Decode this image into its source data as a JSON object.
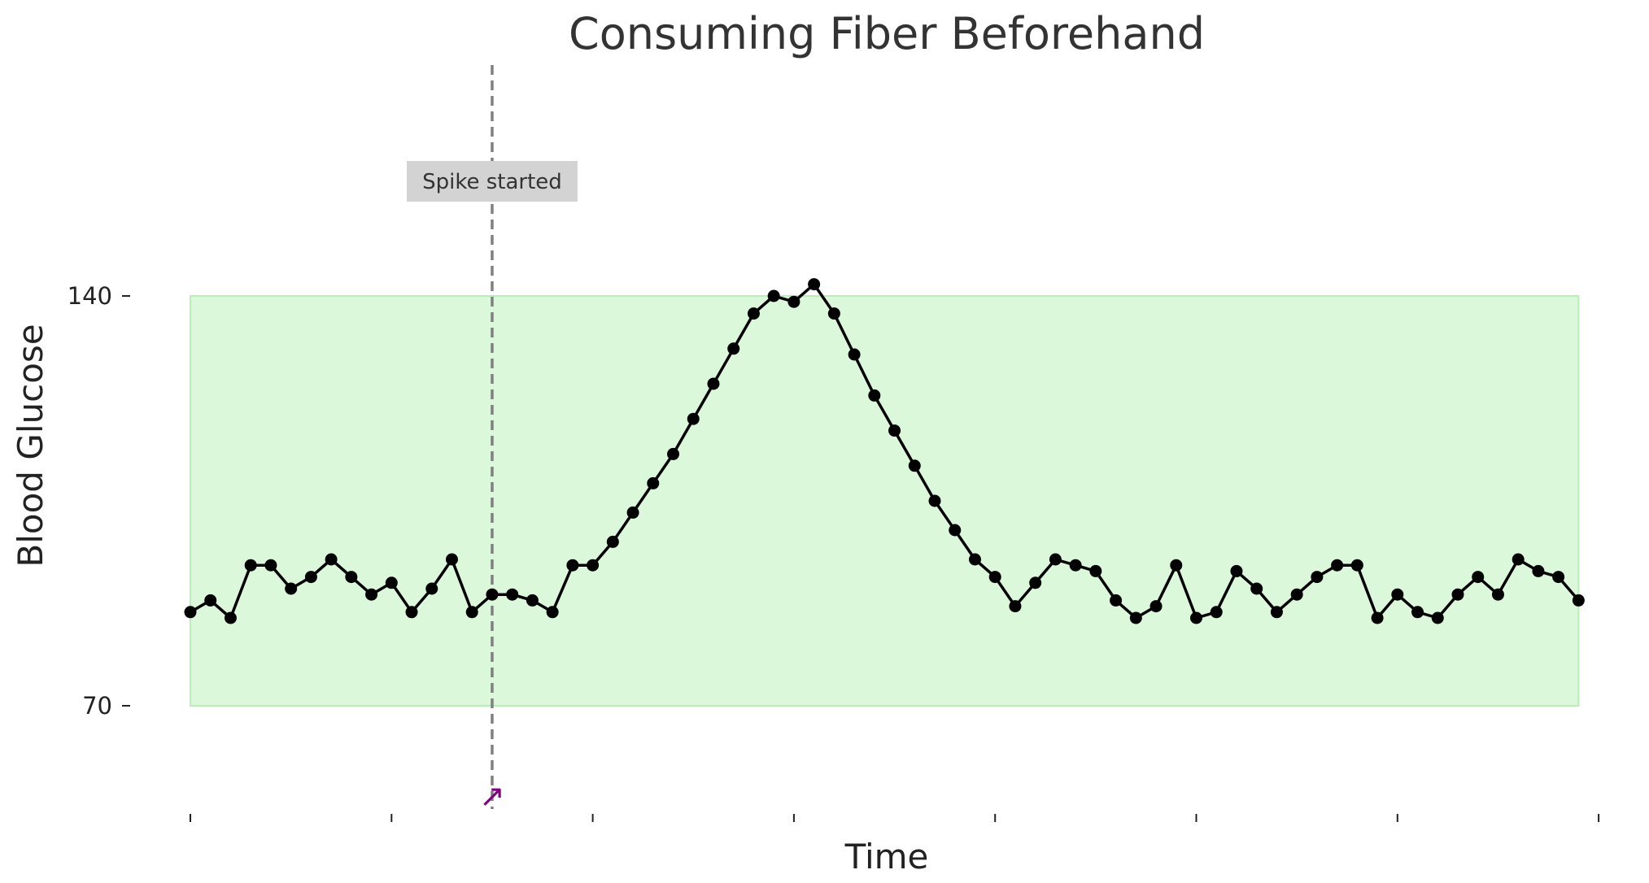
{
  "chart_data": {
    "type": "line",
    "title": "Consuming Fiber Beforehand",
    "xlabel": "Time",
    "ylabel": "Blood Glucose",
    "ylim": [
      55,
      176
    ],
    "y_ticks": [
      70,
      140
    ],
    "x_ticks": [
      0,
      10,
      20,
      30,
      40,
      50,
      60,
      70
    ],
    "x_tick_labels_shown": false,
    "grid": false,
    "target_range": {
      "low": 70,
      "high": 140,
      "color": "#ccf5cc"
    },
    "line_color": "#000000",
    "series": [
      {
        "x": [
          0,
          1,
          2,
          3,
          4,
          5,
          6,
          7,
          8,
          9,
          10,
          11,
          12,
          13,
          14,
          15,
          16,
          17,
          18,
          19,
          20,
          21,
          22,
          23,
          24,
          25,
          26,
          27,
          28,
          29,
          30,
          31,
          32,
          33,
          34,
          35,
          36,
          37,
          38,
          39,
          40,
          41,
          42,
          43,
          44,
          45,
          46,
          47,
          48,
          49,
          50,
          51,
          52,
          53,
          54,
          55,
          56,
          57,
          58,
          59,
          60,
          61,
          62,
          63,
          64,
          65,
          66,
          67,
          68,
          69
        ],
        "values": [
          86,
          88,
          85,
          94,
          94,
          90,
          92,
          95,
          92,
          89,
          91,
          86,
          90,
          95,
          86,
          89,
          89,
          88,
          86,
          94,
          94,
          98,
          103,
          108,
          113,
          119,
          125,
          131,
          137,
          140,
          139,
          142,
          137,
          130,
          123,
          117,
          111,
          105,
          100,
          95,
          92,
          87,
          91,
          95,
          94,
          93,
          88,
          85,
          87,
          94,
          85,
          86,
          93,
          90,
          86,
          89,
          92,
          94,
          94,
          85,
          89,
          86,
          85,
          89,
          92,
          89,
          95,
          93,
          92,
          88
        ]
      }
    ],
    "annotations": [
      {
        "type": "vline",
        "x": 15,
        "color": "#808080",
        "text": "Spike started"
      },
      {
        "type": "arrow",
        "x": 15,
        "color": "#800080",
        "glyph": "↗"
      }
    ]
  }
}
